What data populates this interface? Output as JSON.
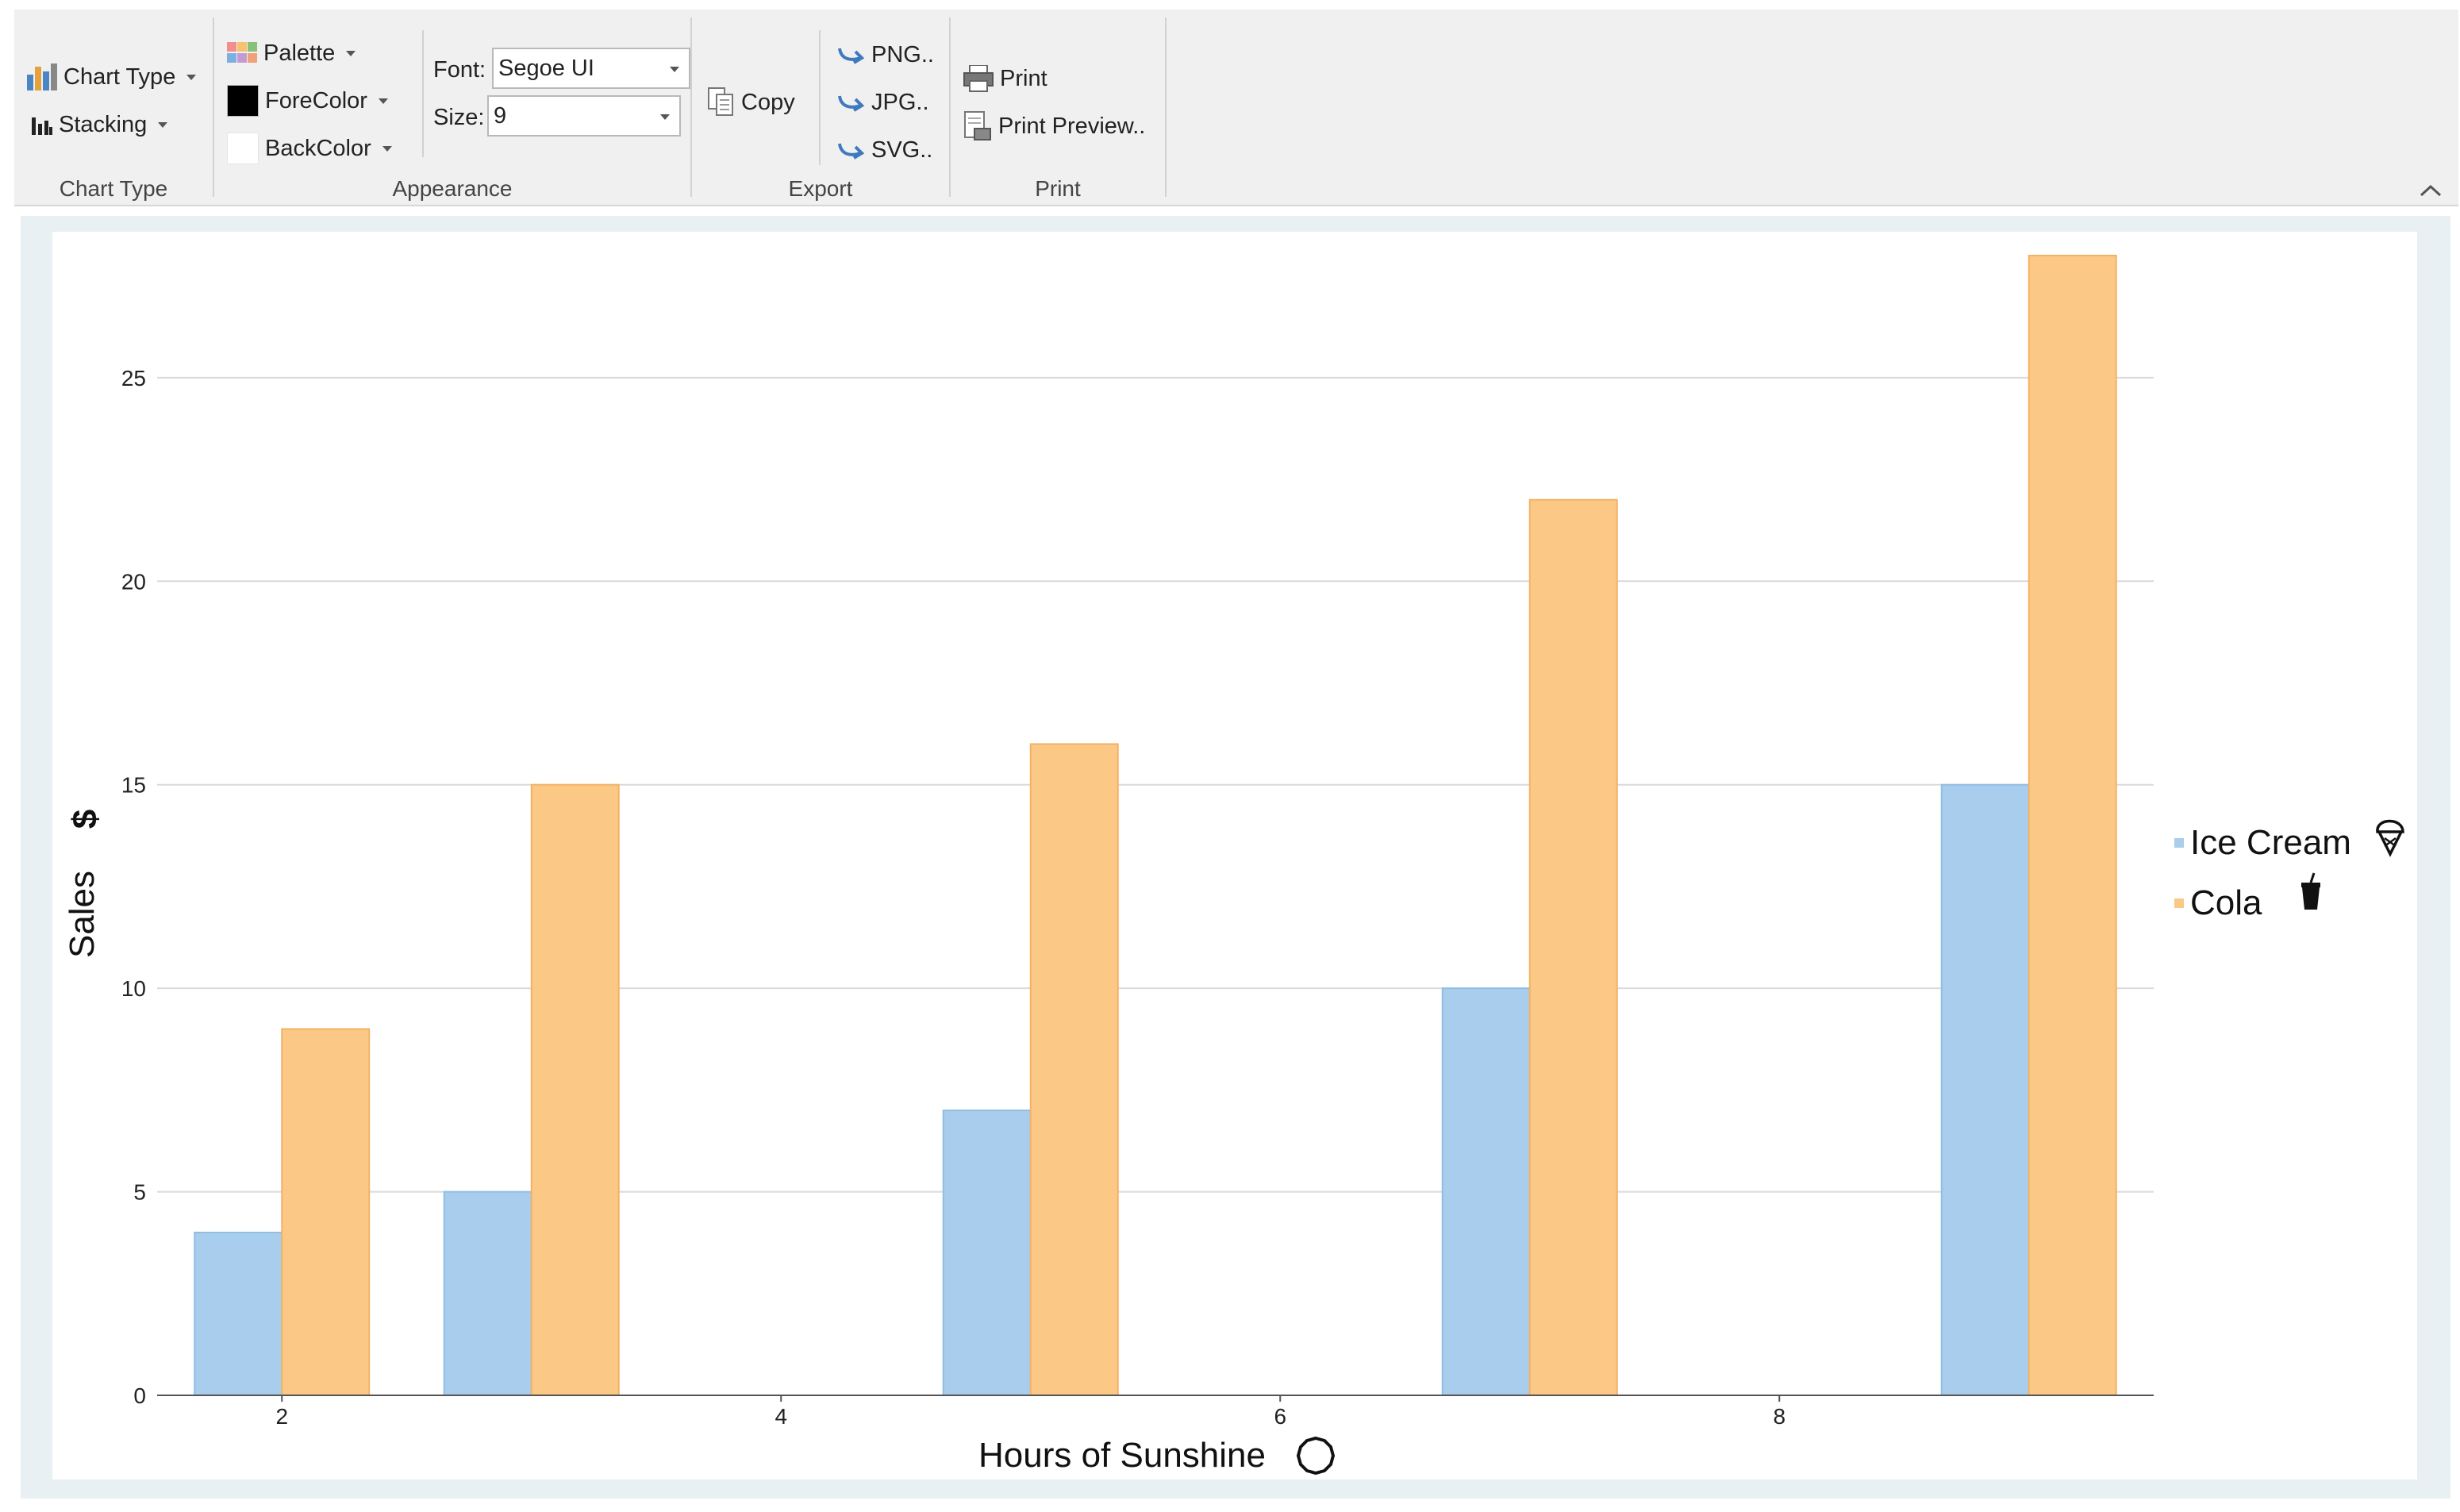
{
  "ribbon": {
    "chart_type_group": {
      "label": "Chart Type",
      "chart_type_button": "Chart Type",
      "stacking_button": "Stacking"
    },
    "appearance_group": {
      "label": "Appearance",
      "palette_button": "Palette",
      "forecolor_button": "ForeColor",
      "forecolor_value": "#000000",
      "backcolor_button": "BackColor",
      "backcolor_value": "#ffffff",
      "font_label": "Font:",
      "font_value": "Segoe UI",
      "size_label": "Size:",
      "size_value": "9"
    },
    "copy_group": {
      "copy_button": "Copy"
    },
    "export_group": {
      "label": "Export",
      "png_button": "PNG..",
      "jpg_button": "JPG..",
      "svg_button": "SVG.."
    },
    "print_group": {
      "label": "Print",
      "print_button": "Print",
      "print_preview_button": "Print Preview.."
    }
  },
  "chart_data": {
    "type": "bar",
    "title": "",
    "xlabel": "Hours of Sunshine",
    "ylabel": "Sales",
    "xlabel_icon": "sun-icon",
    "ylabel_icon": "dollar-icon",
    "x": [
      2,
      3,
      5,
      7,
      9
    ],
    "x_ticks": [
      2,
      4,
      6,
      8
    ],
    "xlim": [
      1.5,
      9.5
    ],
    "ylim": [
      0,
      28
    ],
    "y_ticks": [
      0,
      5,
      10,
      15,
      20,
      25
    ],
    "grid": "horizontal",
    "legend_position": "right",
    "series": [
      {
        "name": "Ice Cream",
        "icon": "ice-cream-icon",
        "color": "#a9cdec",
        "values": [
          4,
          5,
          7,
          10,
          15
        ]
      },
      {
        "name": "Cola",
        "icon": "cola-cup-icon",
        "color": "#fcc886",
        "values": [
          9,
          15,
          16,
          22,
          28
        ]
      }
    ]
  }
}
